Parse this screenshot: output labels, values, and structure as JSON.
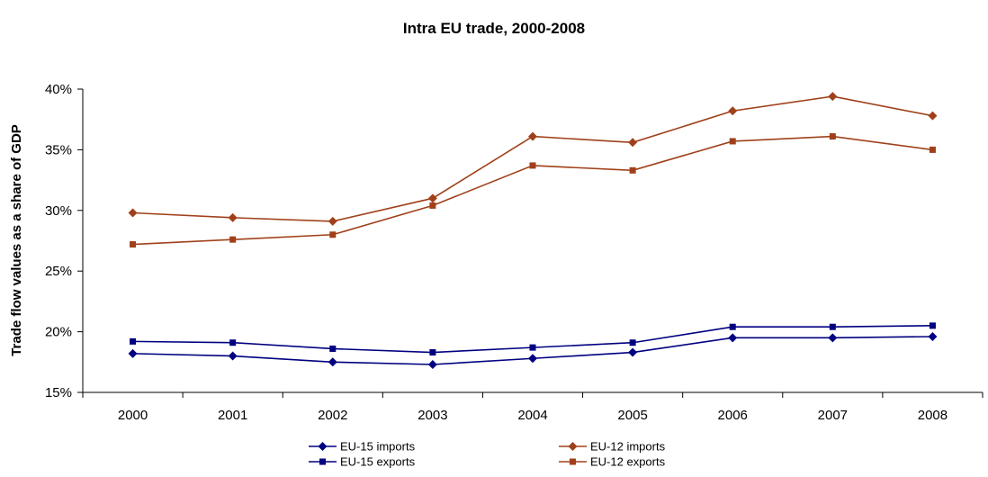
{
  "chart_data": {
    "type": "line",
    "title": "Intra EU trade, 2000-2008",
    "xlabel": "",
    "ylabel": "Trade flow values as a share of GDP",
    "categories": [
      "2000",
      "2001",
      "2002",
      "2003",
      "2004",
      "2005",
      "2006",
      "2007",
      "2008"
    ],
    "y_ticks": [
      "15%",
      "20%",
      "25%",
      "30%",
      "35%",
      "40%"
    ],
    "ylim": [
      15,
      40
    ],
    "y_unit": "%",
    "grid": false,
    "legend_position": "bottom",
    "series": [
      {
        "name": "EU-15 imports",
        "marker": "diamond",
        "color": "#000080",
        "values": [
          18.2,
          18.0,
          17.5,
          17.3,
          17.8,
          18.3,
          19.5,
          19.5,
          19.6
        ]
      },
      {
        "name": "EU-12 imports",
        "marker": "diamond",
        "color": "#A0401A",
        "values": [
          29.8,
          29.4,
          29.1,
          31.0,
          36.1,
          35.6,
          38.2,
          39.4,
          37.8
        ]
      },
      {
        "name": "EU-15 exports",
        "marker": "square",
        "color": "#000080",
        "values": [
          19.2,
          19.1,
          18.6,
          18.3,
          18.7,
          19.1,
          20.4,
          20.4,
          20.5
        ]
      },
      {
        "name": "EU-12 exports",
        "marker": "square",
        "color": "#A0401A",
        "values": [
          27.2,
          27.6,
          28.0,
          30.4,
          33.7,
          33.3,
          35.7,
          36.1,
          35.0
        ]
      }
    ]
  }
}
